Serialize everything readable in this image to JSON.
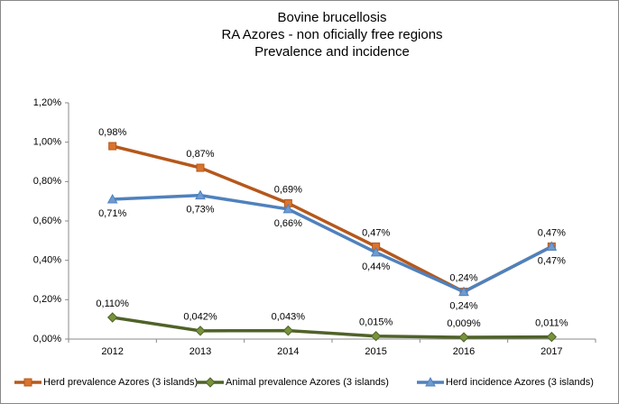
{
  "chart_data": {
    "type": "line",
    "title": [
      "Bovine brucellosis",
      "RA Azores - non oficially free regions",
      "Prevalence and incidence"
    ],
    "categories": [
      "2012",
      "2013",
      "2014",
      "2015",
      "2016",
      "2017"
    ],
    "series": [
      {
        "name": "Herd prevalence  Azores (3 islands)",
        "color": "#b5581b",
        "marker": "square",
        "marker_color": "#d9742e",
        "label_side": "above",
        "values": [
          0.98,
          0.87,
          0.69,
          0.47,
          0.24,
          0.47
        ],
        "value_labels": [
          "0,98%",
          "0,87%",
          "0,69%",
          "0,47%",
          "0,24%",
          "0,47%"
        ]
      },
      {
        "name": "Animal prevalence Azores (3 islands)",
        "color": "#4f6228",
        "marker": "diamond",
        "marker_color": "#77933c",
        "label_side": "above",
        "values": [
          0.11,
          0.042,
          0.043,
          0.015,
          0.009,
          0.011
        ],
        "value_labels": [
          "0,110%",
          "0,042%",
          "0,043%",
          "0,015%",
          "0,009%",
          "0,011%"
        ]
      },
      {
        "name": "Herd incidence Azores (3 islands)",
        "color": "#4f81bd",
        "marker": "triangle",
        "marker_color": "#6f9bd1",
        "label_side": "below",
        "values": [
          0.71,
          0.73,
          0.66,
          0.44,
          0.24,
          0.47
        ],
        "value_labels": [
          "0,71%",
          "0,73%",
          "0,66%",
          "0,44%",
          "0,24%",
          "0,47%"
        ]
      }
    ],
    "ylim": [
      0,
      1.2
    ],
    "yticks": [
      {
        "value": 0,
        "label": "0,00%"
      },
      {
        "value": 0.2,
        "label": "0,20%"
      },
      {
        "value": 0.4,
        "label": "0,40%"
      },
      {
        "value": 0.6,
        "label": "0,60%"
      },
      {
        "value": 0.8,
        "label": "0,80%"
      },
      {
        "value": 1.0,
        "label": "1,00%"
      },
      {
        "value": 1.2,
        "label": "1,20%"
      }
    ],
    "legend": "bottom"
  }
}
